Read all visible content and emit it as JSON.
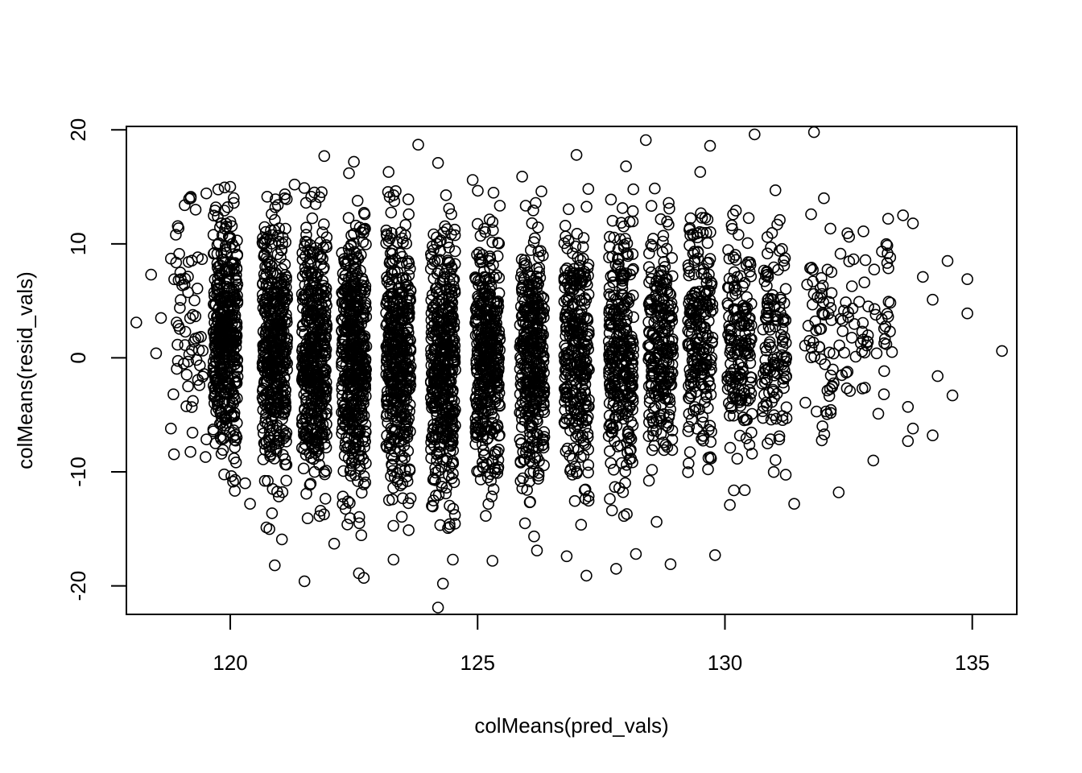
{
  "chart_data": {
    "type": "scatter",
    "title": "",
    "xlabel": "colMeans(pred_vals)",
    "ylabel": "colMeans(resid_vals)",
    "xlim": [
      117.9,
      135.9
    ],
    "ylim": [
      -22.5,
      20.3
    ],
    "x_ticks": [
      120,
      125,
      130,
      135
    ],
    "x_tick_labels": [
      "120",
      "125",
      "130",
      "135"
    ],
    "y_ticks": [
      -20,
      -10,
      0,
      10,
      20
    ],
    "y_tick_labels": [
      "-20",
      "-10",
      "0",
      "10",
      "20"
    ],
    "marker": "open-circle",
    "marker_color": "#000000",
    "grid": false,
    "legend": "none",
    "points": [
      [
        118.1,
        3.1
      ],
      [
        118.4,
        7.3
      ],
      [
        118.5,
        0.4
      ],
      [
        118.6,
        3.5
      ],
      [
        118.8,
        8.7
      ],
      [
        118.8,
        -6.2
      ],
      [
        118.85,
        -3.2
      ],
      [
        118.9,
        10.8
      ],
      [
        119.0,
        6.9
      ],
      [
        119.2,
        14.0
      ],
      [
        119.3,
        13.0
      ],
      [
        119.5,
        -8.7
      ],
      [
        119.7,
        -7.5
      ],
      [
        120.0,
        15.0
      ],
      [
        120.3,
        -11.0
      ],
      [
        120.4,
        -12.8
      ],
      [
        120.9,
        -18.2
      ],
      [
        121.1,
        14.0
      ],
      [
        121.3,
        15.2
      ],
      [
        121.5,
        -19.6
      ],
      [
        121.7,
        14.5
      ],
      [
        121.9,
        17.7
      ],
      [
        122.1,
        -16.3
      ],
      [
        122.4,
        16.2
      ],
      [
        122.5,
        17.2
      ],
      [
        122.6,
        -18.9
      ],
      [
        122.7,
        -19.3
      ],
      [
        123.2,
        16.3
      ],
      [
        123.3,
        -17.7
      ],
      [
        123.6,
        13.9
      ],
      [
        123.8,
        18.7
      ],
      [
        124.2,
        17.1
      ],
      [
        124.2,
        -21.9
      ],
      [
        124.3,
        -19.8
      ],
      [
        124.5,
        -17.7
      ],
      [
        124.9,
        15.6
      ],
      [
        125.3,
        -17.8
      ],
      [
        125.9,
        15.9
      ],
      [
        126.2,
        -16.9
      ],
      [
        126.8,
        -17.4
      ],
      [
        127.0,
        17.8
      ],
      [
        127.2,
        -19.1
      ],
      [
        127.8,
        -18.5
      ],
      [
        128.0,
        16.8
      ],
      [
        128.2,
        -17.2
      ],
      [
        128.4,
        19.1
      ],
      [
        128.9,
        -18.1
      ],
      [
        129.5,
        16.3
      ],
      [
        129.7,
        18.6
      ],
      [
        129.8,
        -17.3
      ],
      [
        130.1,
        -12.9
      ],
      [
        130.4,
        -11.6
      ],
      [
        130.6,
        19.6
      ],
      [
        131.4,
        -12.8
      ],
      [
        131.8,
        19.8
      ],
      [
        132.0,
        14.0
      ],
      [
        132.3,
        -11.8
      ],
      [
        132.8,
        11.1
      ],
      [
        133.0,
        -9.0
      ],
      [
        133.1,
        -4.9
      ],
      [
        133.3,
        12.2
      ],
      [
        133.6,
        12.5
      ],
      [
        133.7,
        -4.3
      ],
      [
        133.7,
        -7.3
      ],
      [
        133.8,
        -6.2
      ],
      [
        133.8,
        11.8
      ],
      [
        134.0,
        7.1
      ],
      [
        134.2,
        5.1
      ],
      [
        134.2,
        -6.8
      ],
      [
        134.3,
        -1.6
      ],
      [
        134.5,
        8.5
      ],
      [
        134.6,
        -3.3
      ],
      [
        134.9,
        6.9
      ],
      [
        134.9,
        3.9
      ],
      [
        135.6,
        0.6
      ]
    ]
  }
}
